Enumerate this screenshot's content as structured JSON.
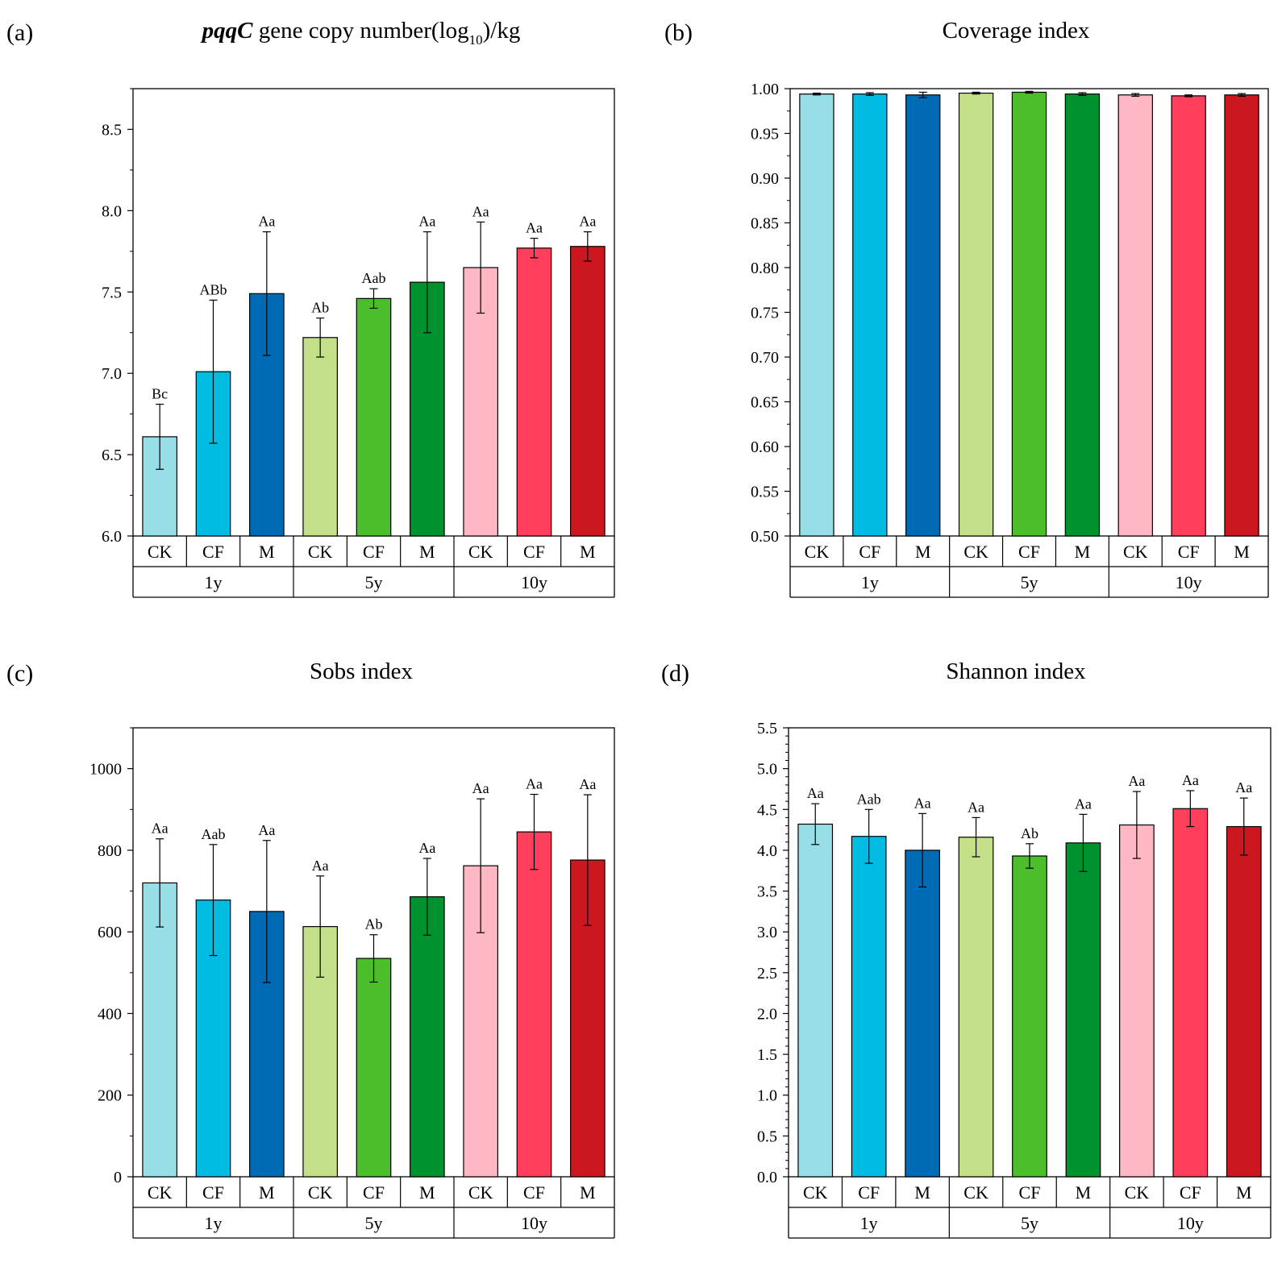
{
  "colors": [
    "#98dee6",
    "#00bce3",
    "#006bb5",
    "#c3df88",
    "#4cbd2b",
    "#00922e",
    "#ffb8c3",
    "#ff3f5c",
    "#cd1720"
  ],
  "chart_data": [
    {
      "type": "bar",
      "panel_label": "(a)",
      "title_italic": "pqqC",
      "title_main": " gene copy number(log",
      "title_sub": "10",
      "title_tail": ")/kg",
      "categories": [
        "CK",
        "CF",
        "M",
        "CK",
        "CF",
        "M",
        "CK",
        "CF",
        "M"
      ],
      "groups": [
        "1y",
        "5y",
        "10y"
      ],
      "values": [
        6.61,
        7.01,
        7.49,
        7.22,
        7.46,
        7.56,
        7.65,
        7.77,
        7.78
      ],
      "errors": [
        0.2,
        0.44,
        0.38,
        0.12,
        0.06,
        0.31,
        0.28,
        0.06,
        0.09
      ],
      "letters": [
        "Bc",
        "ABb",
        "Aa",
        "Ab",
        "Aab",
        "Aa",
        "Aa",
        "Aa",
        "Aa"
      ],
      "ylim": [
        6.0,
        8.75
      ],
      "yticks": [
        "6.0",
        "6.5",
        "7.0",
        "7.5",
        "8.0",
        "8.5"
      ]
    },
    {
      "type": "bar",
      "panel_label": "(b)",
      "title": "Coverage index",
      "categories": [
        "CK",
        "CF",
        "M",
        "CK",
        "CF",
        "M",
        "CK",
        "CF",
        "M"
      ],
      "groups": [
        "1y",
        "5y",
        "10y"
      ],
      "values": [
        0.994,
        0.994,
        0.993,
        0.995,
        0.996,
        0.994,
        0.993,
        0.992,
        0.993
      ],
      "errors": [
        0.001,
        0.0015,
        0.003,
        0.001,
        0.001,
        0.0015,
        0.0015,
        0.001,
        0.0015
      ],
      "letters": [],
      "ylim": [
        0.5,
        1.0
      ],
      "yticks": [
        "0.50",
        "0.55",
        "0.60",
        "0.65",
        "0.70",
        "0.75",
        "0.80",
        "0.85",
        "0.90",
        "0.95",
        "1.00"
      ]
    },
    {
      "type": "bar",
      "panel_label": "(c)",
      "title": "Sobs index",
      "categories": [
        "CK",
        "CF",
        "M",
        "CK",
        "CF",
        "M",
        "CK",
        "CF",
        "M"
      ],
      "groups": [
        "1y",
        "5y",
        "10y"
      ],
      "values": [
        720,
        678,
        650,
        613,
        535,
        686,
        762,
        845,
        776
      ],
      "errors": [
        108,
        136,
        174,
        124,
        58,
        94,
        164,
        92,
        160
      ],
      "letters": [
        "Aa",
        "Aab",
        "Aa",
        "Aa",
        "Ab",
        "Aa",
        "Aa",
        "Aa",
        "Aa"
      ],
      "ylim": [
        0,
        1100
      ],
      "yticks": [
        "0",
        "200",
        "400",
        "600",
        "800",
        "1000"
      ]
    },
    {
      "type": "bar",
      "panel_label": "(d)",
      "title": "Shannon index",
      "categories": [
        "CK",
        "CF",
        "M",
        "CK",
        "CF",
        "M",
        "CK",
        "CF",
        "M"
      ],
      "groups": [
        "1y",
        "5y",
        "10y"
      ],
      "values": [
        4.32,
        4.17,
        4.0,
        4.16,
        3.93,
        4.09,
        4.31,
        4.51,
        4.29
      ],
      "errors": [
        0.25,
        0.33,
        0.45,
        0.24,
        0.15,
        0.35,
        0.41,
        0.22,
        0.35
      ],
      "letters": [
        "Aa",
        "Aab",
        "Aa",
        "Aa",
        "Ab",
        "Aa",
        "Aa",
        "Aa",
        "Aa"
      ],
      "ylim": [
        0,
        5.5
      ],
      "yticks": [
        "0.0",
        "0.5",
        "1.0",
        "1.5",
        "2.0",
        "2.5",
        "3.0",
        "3.5",
        "4.0",
        "4.5",
        "5.0",
        "5.5"
      ]
    }
  ]
}
